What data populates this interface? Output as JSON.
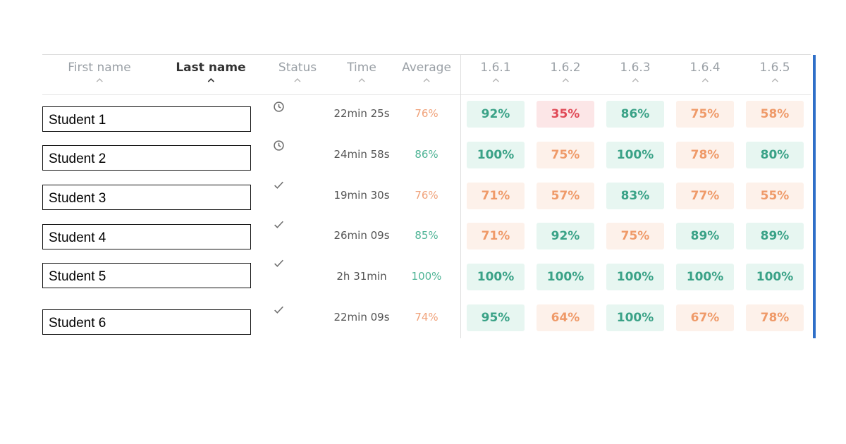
{
  "columns": {
    "first_name": "First name",
    "last_name": "Last name",
    "status": "Status",
    "time": "Time",
    "average": "Average",
    "sections": [
      "1.6.1",
      "1.6.2",
      "1.6.3",
      "1.6.4",
      "1.6.5"
    ]
  },
  "sort_icon": "chevron-up-icon",
  "colors": {
    "green_text": "#3aa287",
    "green_bg": "#e7f6f1",
    "orange_text": "#ef9a69",
    "orange_bg": "#fdf1ea",
    "red_text": "#e04a57",
    "red_bg": "#fce6e7",
    "accent_bar": "#2f6fc8"
  },
  "rows": [
    {
      "name": "Student 1",
      "status": "clock-icon",
      "time": "22min 25s",
      "average": "76%",
      "average_tone": "orange",
      "scores": [
        {
          "v": "92%",
          "tone": "green"
        },
        {
          "v": "35%",
          "tone": "red"
        },
        {
          "v": "86%",
          "tone": "green"
        },
        {
          "v": "75%",
          "tone": "orange"
        },
        {
          "v": "58%",
          "tone": "orange"
        }
      ]
    },
    {
      "name": "Student 2",
      "status": "clock-icon",
      "time": "24min 58s",
      "average": "86%",
      "average_tone": "green",
      "scores": [
        {
          "v": "100%",
          "tone": "green"
        },
        {
          "v": "75%",
          "tone": "orange"
        },
        {
          "v": "100%",
          "tone": "green"
        },
        {
          "v": "78%",
          "tone": "orange"
        },
        {
          "v": "80%",
          "tone": "green"
        }
      ]
    },
    {
      "name": "Student 3",
      "status": "check-icon",
      "time": "19min 30s",
      "average": "76%",
      "average_tone": "orange",
      "scores": [
        {
          "v": "71%",
          "tone": "orange"
        },
        {
          "v": "57%",
          "tone": "orange"
        },
        {
          "v": "83%",
          "tone": "green"
        },
        {
          "v": "77%",
          "tone": "orange"
        },
        {
          "v": "55%",
          "tone": "orange"
        }
      ]
    },
    {
      "name": "Student 4",
      "status": "check-icon",
      "time": "26min 09s",
      "average": "85%",
      "average_tone": "green",
      "scores": [
        {
          "v": "71%",
          "tone": "orange"
        },
        {
          "v": "92%",
          "tone": "green"
        },
        {
          "v": "75%",
          "tone": "orange"
        },
        {
          "v": "89%",
          "tone": "green"
        },
        {
          "v": "89%",
          "tone": "green"
        }
      ]
    },
    {
      "name": "Student 5",
      "status": "check-icon",
      "time": "2h 31min",
      "average": "100%",
      "average_tone": "green",
      "scores": [
        {
          "v": "100%",
          "tone": "green"
        },
        {
          "v": "100%",
          "tone": "green"
        },
        {
          "v": "100%",
          "tone": "green"
        },
        {
          "v": "100%",
          "tone": "green"
        },
        {
          "v": "100%",
          "tone": "green"
        }
      ]
    },
    {
      "name": "Student 6",
      "status": "check-icon",
      "time": "22min 09s",
      "average": "74%",
      "average_tone": "orange",
      "scores": [
        {
          "v": "95%",
          "tone": "green"
        },
        {
          "v": "64%",
          "tone": "orange"
        },
        {
          "v": "100%",
          "tone": "green"
        },
        {
          "v": "67%",
          "tone": "orange"
        },
        {
          "v": "78%",
          "tone": "orange"
        }
      ]
    }
  ]
}
